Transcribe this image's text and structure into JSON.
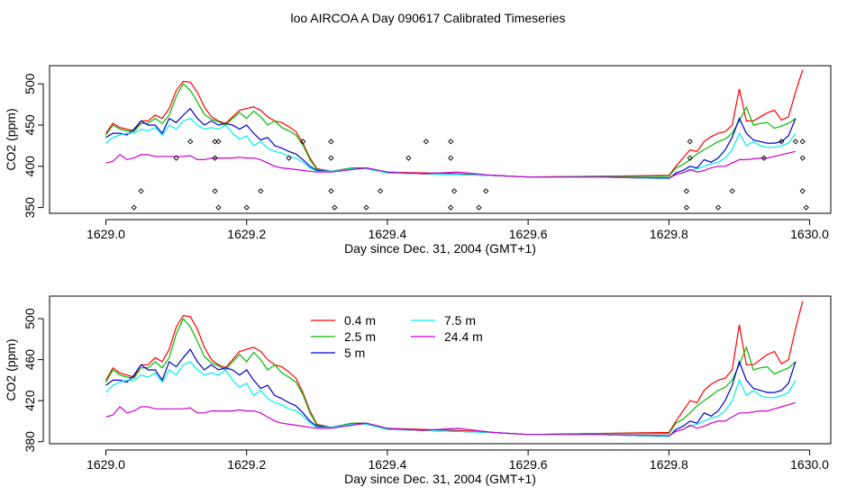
{
  "figure": {
    "title": "loo AIRCOA A  Day 090617  Calibrated Timeseries"
  },
  "colors": {
    "0.4 m": "#ff0000",
    "2.5 m": "#00bb00",
    "5 m": "#0000cc",
    "7.5 m": "#00eeee",
    "24.4 m": "#cc00cc",
    "markers": "#000000"
  },
  "chart_data": [
    {
      "type": "line",
      "title": "loo AIRCOA A  Day 090617  Calibrated Timeseries",
      "xlabel": "Day since Dec. 31, 2004 (GMT+1)",
      "ylabel": "CO2 (ppm)",
      "xlim": [
        1628.92,
        1630.03
      ],
      "ylim": [
        343,
        522
      ],
      "xticks": [
        1629.0,
        1629.2,
        1629.4,
        1629.6,
        1629.8,
        1630.0
      ],
      "xtick_labels": [
        "1629.0",
        "1629.2",
        "1629.4",
        "1629.6",
        "1629.8",
        "1630.0"
      ],
      "yticks": [
        350,
        400,
        450,
        500
      ],
      "ytick_labels": [
        "350",
        "400",
        "450",
        "500"
      ],
      "grid": false,
      "series": [
        {
          "name": "0.4 m",
          "x": [
            1629.0,
            1629.01,
            1629.02,
            1629.03,
            1629.04,
            1629.05,
            1629.06,
            1629.07,
            1629.08,
            1629.09,
            1629.1,
            1629.11,
            1629.12,
            1629.13,
            1629.14,
            1629.15,
            1629.16,
            1629.17,
            1629.18,
            1629.19,
            1629.2,
            1629.21,
            1629.22,
            1629.23,
            1629.24,
            1629.25,
            1629.26,
            1629.27,
            1629.28,
            1629.29,
            1629.3,
            1629.32,
            1629.35,
            1629.37,
            1629.4,
            1629.45,
            1629.5,
            1629.55,
            1629.6,
            1629.7,
            1629.8,
            1629.81,
            1629.82,
            1629.83,
            1629.84,
            1629.85,
            1629.86,
            1629.87,
            1629.88,
            1629.89,
            1629.9,
            1629.91,
            1629.92,
            1629.93,
            1629.94,
            1629.95,
            1629.96,
            1629.97,
            1629.98,
            1629.99
          ],
          "y": [
            440,
            452,
            447,
            445,
            443,
            455,
            455,
            462,
            458,
            470,
            492,
            503,
            502,
            490,
            472,
            460,
            455,
            452,
            460,
            468,
            470,
            472,
            468,
            460,
            455,
            453,
            448,
            442,
            428,
            410,
            397,
            394,
            398,
            398,
            393,
            392,
            391,
            389,
            387,
            388,
            389,
            400,
            410,
            420,
            418,
            430,
            436,
            440,
            442,
            450,
            494,
            455,
            455,
            460,
            465,
            468,
            456,
            460,
            490,
            517
          ]
        },
        {
          "name": "2.5 m",
          "x": [
            1629.0,
            1629.01,
            1629.02,
            1629.03,
            1629.04,
            1629.05,
            1629.06,
            1629.07,
            1629.08,
            1629.09,
            1629.1,
            1629.11,
            1629.12,
            1629.13,
            1629.14,
            1629.15,
            1629.16,
            1629.17,
            1629.18,
            1629.19,
            1629.2,
            1629.21,
            1629.22,
            1629.23,
            1629.24,
            1629.25,
            1629.26,
            1629.27,
            1629.28,
            1629.29,
            1629.3,
            1629.32,
            1629.35,
            1629.37,
            1629.4,
            1629.45,
            1629.5,
            1629.55,
            1629.6,
            1629.7,
            1629.8,
            1629.81,
            1629.82,
            1629.83,
            1629.84,
            1629.85,
            1629.86,
            1629.87,
            1629.88,
            1629.89,
            1629.9,
            1629.91,
            1629.92,
            1629.93,
            1629.94,
            1629.95,
            1629.96,
            1629.97,
            1629.98
          ],
          "y": [
            438,
            450,
            445,
            443,
            442,
            452,
            452,
            458,
            452,
            462,
            485,
            500,
            492,
            478,
            463,
            457,
            454,
            450,
            458,
            465,
            458,
            467,
            460,
            450,
            455,
            447,
            443,
            438,
            426,
            408,
            396,
            394,
            398,
            398,
            393,
            391,
            390,
            389,
            387,
            388,
            388,
            398,
            402,
            408,
            415,
            420,
            425,
            430,
            433,
            440,
            455,
            472,
            450,
            452,
            453,
            446,
            449,
            452,
            458
          ]
        },
        {
          "name": "5 m",
          "x": [
            1629.0,
            1629.01,
            1629.02,
            1629.03,
            1629.04,
            1629.05,
            1629.06,
            1629.07,
            1629.08,
            1629.09,
            1629.1,
            1629.11,
            1629.12,
            1629.13,
            1629.14,
            1629.15,
            1629.16,
            1629.17,
            1629.18,
            1629.19,
            1629.2,
            1629.21,
            1629.22,
            1629.23,
            1629.24,
            1629.25,
            1629.26,
            1629.27,
            1629.28,
            1629.29,
            1629.3,
            1629.32,
            1629.35,
            1629.37,
            1629.4,
            1629.45,
            1629.5,
            1629.55,
            1629.6,
            1629.7,
            1629.8,
            1629.81,
            1629.82,
            1629.83,
            1629.84,
            1629.85,
            1629.86,
            1629.87,
            1629.88,
            1629.89,
            1629.9,
            1629.91,
            1629.92,
            1629.93,
            1629.94,
            1629.95,
            1629.96,
            1629.97,
            1629.98
          ],
          "y": [
            435,
            440,
            440,
            438,
            445,
            455,
            450,
            450,
            440,
            458,
            453,
            462,
            470,
            458,
            450,
            455,
            450,
            452,
            450,
            445,
            450,
            440,
            432,
            435,
            425,
            422,
            418,
            415,
            408,
            400,
            395,
            394,
            397,
            398,
            392,
            391,
            390,
            389,
            387,
            387,
            385,
            392,
            395,
            400,
            398,
            408,
            405,
            410,
            420,
            435,
            458,
            440,
            432,
            430,
            428,
            428,
            430,
            437,
            458
          ]
        },
        {
          "name": "7.5 m",
          "x": [
            1629.0,
            1629.01,
            1629.02,
            1629.03,
            1629.04,
            1629.05,
            1629.06,
            1629.07,
            1629.08,
            1629.09,
            1629.1,
            1629.11,
            1629.12,
            1629.13,
            1629.14,
            1629.15,
            1629.16,
            1629.17,
            1629.18,
            1629.19,
            1629.2,
            1629.21,
            1629.22,
            1629.23,
            1629.24,
            1629.25,
            1629.26,
            1629.27,
            1629.28,
            1629.29,
            1629.3,
            1629.32,
            1629.35,
            1629.37,
            1629.4,
            1629.45,
            1629.5,
            1629.55,
            1629.6,
            1629.7,
            1629.8,
            1629.81,
            1629.82,
            1629.83,
            1629.84,
            1629.85,
            1629.86,
            1629.87,
            1629.88,
            1629.89,
            1629.9,
            1629.91,
            1629.92,
            1629.93,
            1629.94,
            1629.95,
            1629.96,
            1629.97,
            1629.98
          ],
          "y": [
            428,
            435,
            438,
            440,
            440,
            445,
            443,
            447,
            438,
            450,
            445,
            455,
            458,
            450,
            445,
            447,
            445,
            450,
            440,
            433,
            437,
            425,
            430,
            422,
            418,
            416,
            412,
            410,
            405,
            398,
            394,
            394,
            397,
            397,
            392,
            391,
            390,
            389,
            387,
            387,
            385,
            390,
            392,
            395,
            397,
            400,
            403,
            405,
            410,
            420,
            440,
            425,
            430,
            425,
            423,
            423,
            425,
            428,
            440
          ]
        },
        {
          "name": "24.4 m",
          "x": [
            1629.0,
            1629.01,
            1629.02,
            1629.03,
            1629.04,
            1629.05,
            1629.06,
            1629.07,
            1629.08,
            1629.09,
            1629.1,
            1629.11,
            1629.12,
            1629.13,
            1629.14,
            1629.15,
            1629.16,
            1629.17,
            1629.18,
            1629.19,
            1629.2,
            1629.21,
            1629.22,
            1629.23,
            1629.24,
            1629.25,
            1629.26,
            1629.27,
            1629.28,
            1629.29,
            1629.3,
            1629.32,
            1629.35,
            1629.37,
            1629.4,
            1629.45,
            1629.5,
            1629.55,
            1629.6,
            1629.7,
            1629.8,
            1629.81,
            1629.82,
            1629.83,
            1629.84,
            1629.85,
            1629.86,
            1629.87,
            1629.88,
            1629.89,
            1629.9,
            1629.91,
            1629.92,
            1629.93,
            1629.94,
            1629.95,
            1629.96,
            1629.97,
            1629.98
          ],
          "y": [
            404,
            406,
            414,
            408,
            410,
            414,
            414,
            412,
            412,
            412,
            412,
            412,
            413,
            408,
            408,
            410,
            410,
            410,
            410,
            411,
            410,
            410,
            408,
            404,
            400,
            398,
            397,
            396,
            395,
            394,
            393,
            393,
            396,
            398,
            393,
            391,
            393,
            389,
            387,
            387,
            386,
            390,
            392,
            396,
            393,
            395,
            398,
            400,
            400,
            404,
            408,
            408,
            409,
            410,
            410,
            412,
            414,
            416,
            418
          ]
        }
      ],
      "markers": {
        "name": "",
        "x": [
          1629.04,
          1629.05,
          1629.1,
          1629.12,
          1629.155,
          1629.155,
          1629.155,
          1629.16,
          1629.16,
          1629.2,
          1629.22,
          1629.26,
          1629.28,
          1629.32,
          1629.32,
          1629.32,
          1629.325,
          1629.37,
          1629.39,
          1629.43,
          1629.455,
          1629.49,
          1629.49,
          1629.495,
          1629.49,
          1629.53,
          1629.54,
          1629.825,
          1629.83,
          1629.83,
          1629.825,
          1629.87,
          1629.89,
          1629.935,
          1629.96,
          1629.98,
          1629.99,
          1629.99,
          1629.99,
          1629.995
        ],
        "y": [
          350,
          370,
          410,
          430,
          430,
          410,
          370,
          350,
          430,
          350,
          370,
          410,
          430,
          430,
          410,
          370,
          350,
          350,
          370,
          410,
          430,
          430,
          410,
          370,
          350,
          350,
          370,
          370,
          410,
          430,
          350,
          350,
          370,
          410,
          430,
          430,
          430,
          410,
          370,
          350
        ]
      }
    },
    {
      "type": "line",
      "xlabel": "Day since Dec. 31, 2004 (GMT+1)",
      "ylabel": "CO2 (ppm)",
      "xlim": [
        1628.92,
        1630.03
      ],
      "ylim": [
        378,
        522
      ],
      "xticks": [
        1629.0,
        1629.2,
        1629.4,
        1629.6,
        1629.8,
        1630.0
      ],
      "xtick_labels": [
        "1629.0",
        "1629.2",
        "1629.4",
        "1629.6",
        "1629.8",
        "1630.0"
      ],
      "yticks": [
        380,
        420,
        460,
        500
      ],
      "ytick_labels": [
        "380",
        "420",
        "460",
        "500"
      ],
      "grid": false,
      "legend": {
        "placement": "top-center",
        "entries": [
          "0.4 m",
          "2.5 m",
          "5 m",
          "7.5 m",
          "24.4 m"
        ]
      },
      "series_ref": "same as first chart"
    }
  ]
}
